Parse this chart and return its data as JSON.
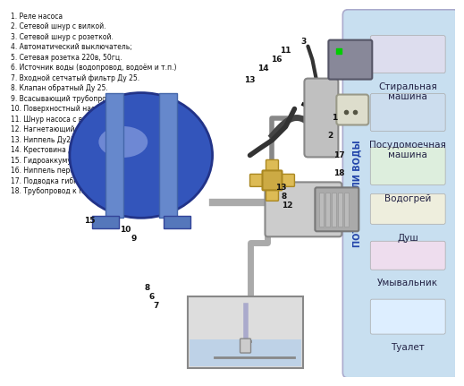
{
  "title": "",
  "bg_color": "#f0f0f0",
  "legend_items": [
    "1. Реле насоса",
    "2. Сетевой шнур с вилкой.",
    "3. Сетевой шнур с розеткой.",
    "4. Автоматический выключатель;",
    "5. Сетевая розетка 220в, 50гц.",
    "6. Источник воды (водопровод, водоём и т.п.)",
    "7. Входной сетчатый фильтр Ду 25.",
    "8. Клапан обратный Ду 25.",
    "9. Всасывающий трубопровод Ду 25.",
    "10. Поверхностный насос.",
    "11. Шнур насоса с вилкой.",
    "12. Нагнетающий трубопровод Ду 25.",
    "13. Ниппель Ду25.",
    "14. Крестовина Ду25.",
    "15. Гидроаккумулятор.",
    "16. Ниппель переходной Ду25 / Ду 15.",
    "17. Подводка гибкая Ду 15.",
    "18. Трубопровод к потребителям воды."
  ],
  "consumers": [
    "Стиральная\nмашина",
    "Посудомоечная\nмашина",
    "Водогрей",
    "Душ",
    "Умывальник",
    "Туалет"
  ],
  "vertical_text": "ПОТРЕБИТЕЛИ ВОДЫ",
  "right_panel_color": "#c8dff0",
  "right_panel_border": "#aaaacc",
  "diagram_bg": "#ffffff",
  "label_font_size": 5.5,
  "consumer_font_size": 7.5
}
